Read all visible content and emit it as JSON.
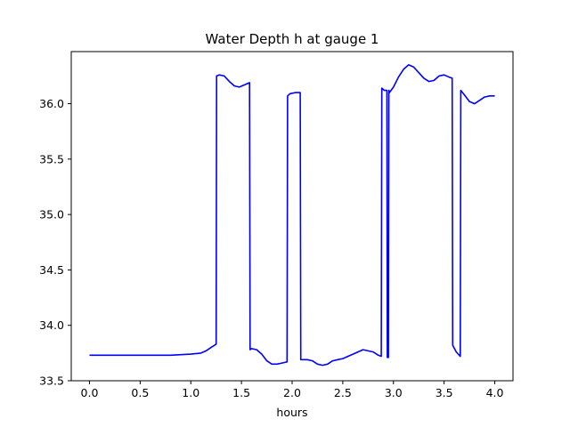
{
  "chart_data": {
    "type": "line",
    "title": "Water Depth h at gauge 1",
    "xlabel": "hours",
    "ylabel": "",
    "xlim": [
      -0.18,
      4.18
    ],
    "ylim": [
      33.5,
      36.47
    ],
    "grid": false,
    "legend": "none",
    "xticks": [
      0.0,
      0.5,
      1.0,
      1.5,
      2.0,
      2.5,
      3.0,
      3.5,
      4.0
    ],
    "xtick_labels": [
      "0.0",
      "0.5",
      "1.0",
      "1.5",
      "2.0",
      "2.5",
      "3.0",
      "3.5",
      "4.0"
    ],
    "yticks": [
      33.5,
      34.0,
      34.5,
      35.0,
      35.5,
      36.0
    ],
    "ytick_labels": [
      "33.5",
      "34.0",
      "34.5",
      "35.0",
      "35.5",
      "36.0"
    ],
    "series": [
      {
        "color": "#0000ff",
        "x": [
          0.0,
          0.5,
          0.8,
          1.0,
          1.1,
          1.15,
          1.2,
          1.25,
          1.255,
          1.28,
          1.33,
          1.38,
          1.43,
          1.48,
          1.53,
          1.58,
          1.585,
          1.6,
          1.65,
          1.7,
          1.75,
          1.8,
          1.85,
          1.9,
          1.95,
          1.955,
          1.98,
          2.03,
          2.08,
          2.085,
          2.15,
          2.2,
          2.25,
          2.3,
          2.35,
          2.4,
          2.45,
          2.5,
          2.6,
          2.7,
          2.75,
          2.8,
          2.85,
          2.88,
          2.885,
          2.91,
          2.935,
          2.94,
          2.95,
          2.955,
          2.96,
          3.0,
          3.05,
          3.1,
          3.15,
          3.2,
          3.25,
          3.3,
          3.35,
          3.4,
          3.45,
          3.5,
          3.55,
          3.58,
          3.585,
          3.62,
          3.66,
          3.665,
          3.7,
          3.75,
          3.8,
          3.85,
          3.9,
          3.95,
          4.0
        ],
        "y": [
          33.73,
          33.73,
          33.73,
          33.74,
          33.75,
          33.77,
          33.8,
          33.83,
          36.25,
          36.26,
          36.25,
          36.2,
          36.16,
          36.15,
          36.17,
          36.19,
          33.78,
          33.79,
          33.78,
          33.74,
          33.68,
          33.65,
          33.65,
          33.66,
          33.67,
          36.07,
          36.09,
          36.1,
          36.1,
          33.69,
          33.69,
          33.68,
          33.65,
          33.64,
          33.65,
          33.68,
          33.69,
          33.7,
          33.74,
          33.78,
          33.77,
          33.76,
          33.73,
          33.72,
          36.14,
          36.12,
          36.12,
          33.71,
          33.71,
          36.12,
          36.1,
          36.15,
          36.24,
          36.31,
          36.35,
          36.33,
          36.28,
          36.23,
          36.2,
          36.21,
          36.25,
          36.26,
          36.24,
          36.23,
          33.82,
          33.76,
          33.72,
          36.12,
          36.08,
          36.02,
          36.0,
          36.03,
          36.06,
          36.07,
          36.07
        ]
      }
    ]
  }
}
